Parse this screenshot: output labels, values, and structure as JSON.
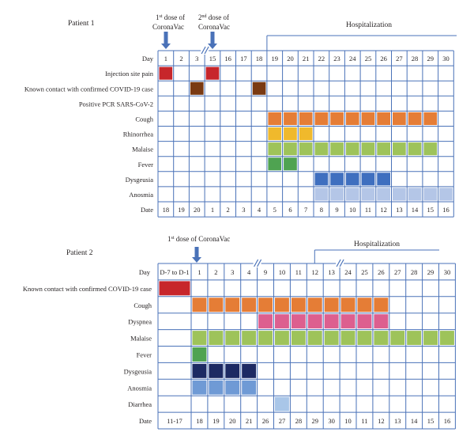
{
  "colors": {
    "grid": "#4a72b8",
    "injection": "#c7262b",
    "contact": "#7a3a12",
    "cough": "#e57d36",
    "rhinorrhea": "#f0b92c",
    "malaise": "#9ec35a",
    "fever": "#4fa351",
    "dysgeusia_p1": "#3f6fbf",
    "dysgeusia_p2": "#1d2a63",
    "anosmia_p1": "#b4c6e7",
    "anosmia_p2": "#6f9ad5",
    "dyspnea": "#dd5f8f",
    "diarrhea": "#a9c6e8",
    "arrow": "#4a72b8",
    "bracket": "#4a72b8"
  },
  "patient1": {
    "title": "Patient 1",
    "dose1": {
      "line1": "1",
      "sup": "st",
      "line1_rest": " dose of",
      "line2": "CoronaVac"
    },
    "dose2": {
      "line1": "2",
      "sup": "nd",
      "line1_rest": " dose of",
      "line2": "CoronaVac"
    },
    "hospitalization": "Hospitalization",
    "day_label": "Day",
    "date_label": "Date",
    "days": [
      "1",
      "2",
      "3",
      "15",
      "16",
      "17",
      "18",
      "19",
      "20",
      "21",
      "22",
      "23",
      "24",
      "25",
      "26",
      "27",
      "28",
      "29",
      "30"
    ],
    "dates": [
      "18",
      "19",
      "20",
      "1",
      "2",
      "3",
      "4",
      "5",
      "6",
      "7",
      "8",
      "9",
      "10",
      "11",
      "12",
      "13",
      "14",
      "15",
      "16"
    ],
    "rows": [
      {
        "label": "Injection site pain",
        "color": "injection",
        "cells": [
          0,
          3
        ]
      },
      {
        "label": "Known contact with confirmed COVID-19 case",
        "color": "contact",
        "cells": [
          2,
          6
        ]
      },
      {
        "label": "Positive PCR SARS-CoV-2",
        "color": "",
        "cells": []
      },
      {
        "label": "Cough",
        "color": "cough",
        "cells": [
          7,
          8,
          9,
          10,
          11,
          12,
          13,
          14,
          15,
          16,
          17
        ]
      },
      {
        "label": "Rhinorrhea",
        "color": "rhinorrhea",
        "cells": [
          7,
          8,
          9
        ]
      },
      {
        "label": "Malaise",
        "color": "malaise",
        "cells": [
          7,
          8,
          9,
          10,
          11,
          12,
          13,
          14,
          15,
          16,
          17
        ]
      },
      {
        "label": "Fever",
        "color": "fever",
        "cells": [
          7,
          8
        ]
      },
      {
        "label": "Dysgeusia",
        "color": "dysgeusia_p1",
        "cells": [
          10,
          11,
          12,
          13,
          14
        ]
      },
      {
        "label": "Anosmia",
        "color": "anosmia_p1",
        "cells": [
          10,
          11,
          12,
          13,
          14,
          15,
          16,
          17,
          18
        ]
      }
    ]
  },
  "patient2": {
    "title": "Patient 2",
    "dose1": {
      "line1": "1",
      "sup": "st",
      "line1_rest": " dose of CoronaVac"
    },
    "hospitalization": "Hospitalization",
    "day_label": "Day",
    "date_label": "Date",
    "days": [
      "D-7 to D-1",
      "1",
      "2",
      "3",
      "4",
      "9",
      "10",
      "11",
      "12",
      "13",
      "24",
      "25",
      "26",
      "27",
      "28",
      "29",
      "30"
    ],
    "dates": [
      "11-17",
      "18",
      "19",
      "20",
      "21",
      "26",
      "27",
      "28",
      "29",
      "30",
      "10",
      "11",
      "12",
      "13",
      "14",
      "15",
      "16"
    ],
    "rows": [
      {
        "label": "Known contact with confirmed COVID-19 case",
        "color": "injection",
        "cells": [
          0
        ]
      },
      {
        "label": "Cough",
        "color": "cough",
        "cells": [
          1,
          2,
          3,
          4,
          5,
          6,
          7,
          8,
          9,
          10,
          11,
          12
        ]
      },
      {
        "label": "Dyspnea",
        "color": "dyspnea",
        "cells": [
          5,
          6,
          7,
          8,
          9,
          10,
          11,
          12
        ]
      },
      {
        "label": "Malaise",
        "color": "malaise",
        "cells": [
          1,
          2,
          3,
          4,
          5,
          6,
          7,
          8,
          9,
          10,
          11,
          12,
          13,
          14,
          15,
          16
        ]
      },
      {
        "label": "Fever",
        "color": "fever",
        "cells": [
          1
        ]
      },
      {
        "label": "Dysgeusia",
        "color": "dysgeusia_p2",
        "cells": [
          1,
          2,
          3,
          4
        ]
      },
      {
        "label": "Anosmia",
        "color": "anosmia_p2",
        "cells": [
          1,
          2,
          3,
          4
        ]
      },
      {
        "label": "Diarrhea",
        "color": "diarrhea",
        "cells": [
          6
        ]
      }
    ]
  }
}
